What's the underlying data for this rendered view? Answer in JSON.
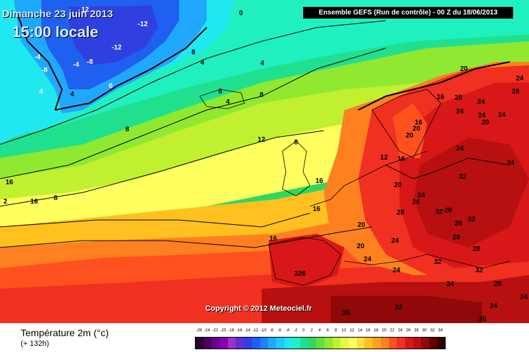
{
  "header": {
    "date": "Dimanche 23 juin 2013",
    "time": "15:00 locale",
    "run": "Ensemble GEFS (Run de contrôle)  -  00 Z du 18/06/2013"
  },
  "copyright": "Copyright © 2012 Meteociel.fr",
  "footer": {
    "variable": "Température 2m (°c)",
    "lead": "(+ 132h)"
  },
  "legend": {
    "values": [
      "-26",
      "-24",
      "-22",
      "-20",
      "-18",
      "-16",
      "-14",
      "-12",
      "-10",
      "-8",
      "-6",
      "-4",
      "-2",
      "0",
      "2",
      "4",
      "6",
      "8",
      "10",
      "12",
      "14",
      "16",
      "18",
      "20",
      "22",
      "24",
      "26",
      "28",
      "30",
      "32",
      "34"
    ],
    "colors": [
      "#2e0030",
      "#4a0060",
      "#6a0090",
      "#8800b0",
      "#a030c8",
      "#6030d0",
      "#3040e0",
      "#2060f0",
      "#2080ff",
      "#20a8ff",
      "#20c8ff",
      "#20e8f0",
      "#20f0c0",
      "#20e090",
      "#30d860",
      "#60e040",
      "#90e830",
      "#c0f030",
      "#e8f840",
      "#ffff60",
      "#ffe040",
      "#ffc020",
      "#ffa020",
      "#ff8020",
      "#ff5020",
      "#f03020",
      "#d81818",
      "#b81010",
      "#900808",
      "#600000",
      "#300000"
    ]
  },
  "map": {
    "labels": [
      {
        "t": "12",
        "v": "12"
      },
      {
        "t": "0",
        "v": "0"
      },
      {
        "t": "-12",
        "v": "-12"
      },
      {
        "t": "-12",
        "v": "-12"
      },
      {
        "t": "-4",
        "v": "-4"
      },
      {
        "t": "-8",
        "v": "-8"
      },
      {
        "t": "-4",
        "v": "-4"
      },
      {
        "t": "-8",
        "v": "-8"
      },
      {
        "t": "4",
        "v": "4"
      },
      {
        "t": "4",
        "v": "4"
      },
      {
        "t": "0",
        "v": "0"
      },
      {
        "t": "8",
        "v": "8"
      },
      {
        "t": "4",
        "v": "4"
      },
      {
        "t": "4",
        "v": "4"
      },
      {
        "t": "8",
        "v": "8"
      },
      {
        "t": "4",
        "v": "4"
      },
      {
        "t": "8",
        "v": "8"
      },
      {
        "t": "8",
        "v": "8"
      },
      {
        "t": "12",
        "v": "12"
      },
      {
        "t": "8",
        "v": "8"
      },
      {
        "t": "16",
        "v": "16"
      },
      {
        "t": "2",
        "v": "2"
      },
      {
        "t": "16",
        "v": "16"
      },
      {
        "t": "8",
        "v": "8"
      },
      {
        "t": "16",
        "v": "16"
      },
      {
        "t": "16",
        "v": "16"
      },
      {
        "t": "12",
        "v": "12"
      },
      {
        "t": "20",
        "v": "20"
      },
      {
        "t": "16",
        "v": "16"
      },
      {
        "t": "20",
        "v": "20"
      },
      {
        "t": "24",
        "v": "24"
      },
      {
        "t": "32",
        "v": "32"
      },
      {
        "t": "24",
        "v": "24"
      },
      {
        "t": "32",
        "v": "32"
      },
      {
        "t": "28",
        "v": "28"
      },
      {
        "t": "28",
        "v": "28"
      },
      {
        "t": "32",
        "v": "32"
      },
      {
        "t": "32",
        "v": "32"
      },
      {
        "t": "28",
        "v": "28"
      },
      {
        "t": "28",
        "v": "28"
      },
      {
        "t": "24",
        "v": "24"
      },
      {
        "t": "20",
        "v": "20"
      },
      {
        "t": "24",
        "v": "24"
      },
      {
        "t": "32",
        "v": "32"
      },
      {
        "t": "28",
        "v": "28"
      },
      {
        "t": "24",
        "v": "24"
      },
      {
        "t": "24",
        "v": "24"
      },
      {
        "t": "328",
        "v": "328"
      },
      {
        "t": "24",
        "v": "24"
      },
      {
        "t": "24",
        "v": "24"
      },
      {
        "t": "28",
        "v": "28"
      },
      {
        "t": "24",
        "v": "24"
      },
      {
        "t": "36",
        "v": "36"
      },
      {
        "t": "32",
        "v": "32"
      },
      {
        "t": "36",
        "v": "36"
      },
      {
        "t": "20",
        "v": "20"
      },
      {
        "t": "24",
        "v": "24"
      },
      {
        "t": "16",
        "v": "16"
      },
      {
        "t": "28",
        "v": "28"
      },
      {
        "t": "24",
        "v": "24"
      },
      {
        "t": "24",
        "v": "24"
      },
      {
        "t": "24",
        "v": "24"
      },
      {
        "t": "24",
        "v": "24"
      },
      {
        "t": "20",
        "v": "20"
      },
      {
        "t": "20",
        "v": "20"
      },
      {
        "t": "24",
        "v": "24"
      },
      {
        "t": "16",
        "v": "16"
      },
      {
        "t": "28",
        "v": "28"
      },
      {
        "t": "20",
        "v": "20"
      },
      {
        "t": "16",
        "v": "16"
      }
    ]
  }
}
